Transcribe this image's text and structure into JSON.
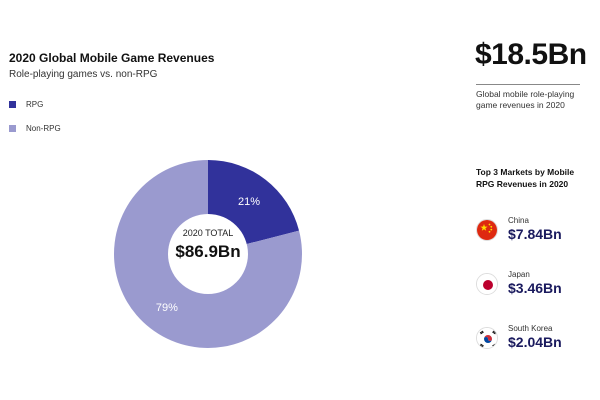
{
  "chart_data": {
    "type": "pie",
    "title": "2020 Global Mobile Game Revenues",
    "subtitle": "Role-playing games vs. non-RPG",
    "legend_position": "top-left",
    "categories": [
      "RPG",
      "Non-RPG"
    ],
    "values": [
      21,
      79
    ],
    "labels": [
      "21%",
      "79%"
    ],
    "colors": [
      "#31329b",
      "#9a9acf"
    ],
    "center_label": "2020 TOTAL",
    "center_value": "$86.9Bn"
  },
  "highlight": {
    "value": "$18.5Bn",
    "description": "Global mobile role-playing game revenues in 2020"
  },
  "markets": {
    "title": "Top 3 Markets by Mobile RPG Revenues in 2020",
    "items": [
      {
        "country": "China",
        "value": "$7.84Bn",
        "flag": "china-flag-icon"
      },
      {
        "country": "Japan",
        "value": "$3.46Bn",
        "flag": "japan-flag-icon"
      },
      {
        "country": "South Korea",
        "value": "$2.04Bn",
        "flag": "south-korea-flag-icon"
      }
    ]
  }
}
